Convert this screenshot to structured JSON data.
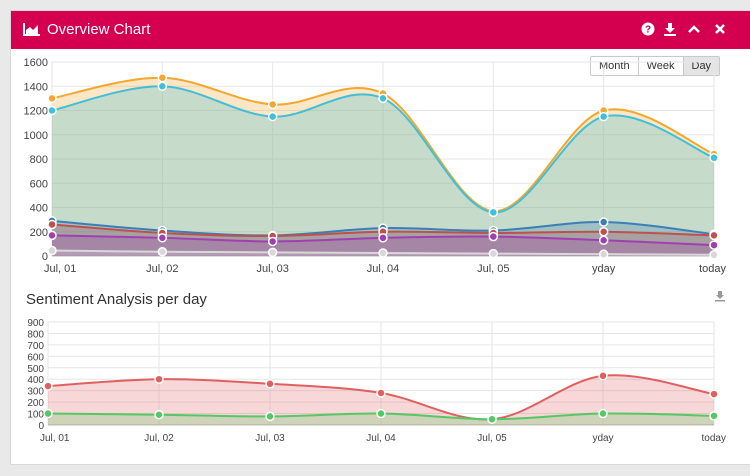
{
  "header": {
    "title": "Overview Chart",
    "color": "#d4004f"
  },
  "icons": [
    "area-chart-icon",
    "help-icon",
    "download-icon",
    "collapse-icon",
    "close-icon"
  ],
  "range_buttons": [
    {
      "label": "Month",
      "active": false
    },
    {
      "label": "Week",
      "active": false
    },
    {
      "label": "Day",
      "active": true
    }
  ],
  "sentiment_title": "Sentiment Analysis per day",
  "chart_data": [
    {
      "type": "area",
      "categories": [
        "Jul, 01",
        "Jul, 02",
        "Jul, 03",
        "Jul, 04",
        "Jul, 05",
        "yday",
        "today"
      ],
      "ylim": [
        0,
        1600
      ],
      "yticks": [
        0,
        200,
        400,
        600,
        800,
        1000,
        1200,
        1400,
        1600
      ],
      "grid": true,
      "series": [
        {
          "color": "#f0a830",
          "values": [
            1300,
            1470,
            1250,
            1340,
            370,
            1200,
            840
          ]
        },
        {
          "color": "#3fbfd8",
          "values": [
            1200,
            1400,
            1150,
            1300,
            360,
            1150,
            810
          ]
        },
        {
          "color": "#3a7fb5",
          "values": [
            290,
            210,
            170,
            230,
            210,
            280,
            180
          ]
        },
        {
          "color": "#c0504d",
          "values": [
            260,
            190,
            165,
            200,
            190,
            200,
            170
          ]
        },
        {
          "color": "#a040b0",
          "values": [
            170,
            150,
            120,
            150,
            160,
            130,
            90
          ]
        },
        {
          "color": "#d8d8d8",
          "values": [
            45,
            35,
            30,
            25,
            20,
            15,
            10
          ]
        }
      ]
    },
    {
      "type": "area",
      "categories": [
        "Jul, 01",
        "Jul, 02",
        "Jul, 03",
        "Jul, 04",
        "Jul, 05",
        "yday",
        "today"
      ],
      "ylim": [
        0,
        900
      ],
      "yticks": [
        0,
        100,
        200,
        300,
        400,
        500,
        600,
        700,
        800,
        900
      ],
      "grid": true,
      "series": [
        {
          "color": "#e06060",
          "values": [
            340,
            400,
            360,
            280,
            50,
            430,
            270
          ]
        },
        {
          "color": "#55c865",
          "values": [
            100,
            90,
            75,
            100,
            50,
            100,
            80
          ]
        }
      ]
    }
  ]
}
